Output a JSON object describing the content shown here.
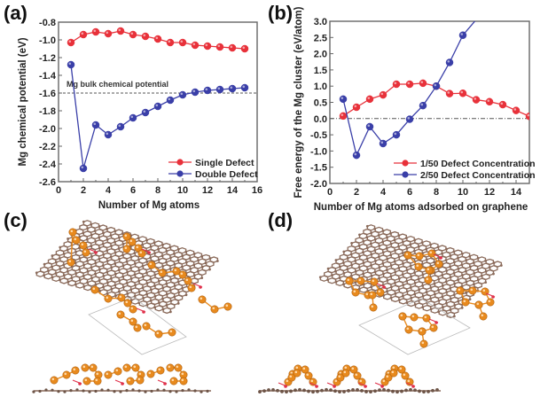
{
  "panels": {
    "a": "(a)",
    "b": "(b)",
    "c": "(c)",
    "d": "(d)"
  },
  "chart_data": [
    {
      "id": "a",
      "type": "line",
      "title": "",
      "xlabel": "Number of Mg atoms",
      "ylabel": "Mg chemical potential (eV)",
      "xlim": [
        0,
        16
      ],
      "ylim": [
        -2.6,
        -0.8
      ],
      "xticks": [
        0,
        2,
        4,
        6,
        8,
        10,
        12,
        14,
        16
      ],
      "yticks": [
        -0.8,
        -1.0,
        -1.2,
        -1.4,
        -1.6,
        -1.8,
        -2.0,
        -2.2,
        -2.4,
        -2.6
      ],
      "ytick_labels": [
        "-0.8",
        "-1.0",
        "-1.2",
        "-1.4",
        "-1.6",
        "-1.8",
        "-2.0",
        "-2.2",
        "-2.4",
        "-2.6"
      ],
      "grid": false,
      "legend": "bottom-right",
      "reference_line": {
        "y": -1.6,
        "label": "Mg bulk chemical potential",
        "style": "dashed"
      },
      "series": [
        {
          "name": "Single Defect",
          "color": "#e8313a",
          "x": [
            1,
            2,
            3,
            4,
            5,
            6,
            7,
            8,
            9,
            10,
            11,
            12,
            13,
            14,
            15
          ],
          "values": [
            -1.03,
            -0.94,
            -0.91,
            -0.93,
            -0.9,
            -0.94,
            -0.96,
            -0.99,
            -1.03,
            -1.03,
            -1.06,
            -1.07,
            -1.08,
            -1.09,
            -1.1
          ]
        },
        {
          "name": "Double Defect",
          "color": "#3a3fa8",
          "x": [
            1,
            2,
            3,
            4,
            5,
            6,
            7,
            8,
            9,
            10,
            11,
            12,
            13,
            14,
            15
          ],
          "values": [
            -1.28,
            -2.45,
            -1.96,
            -2.07,
            -1.98,
            -1.88,
            -1.82,
            -1.75,
            -1.68,
            -1.62,
            -1.59,
            -1.57,
            -1.56,
            -1.55,
            -1.54
          ]
        }
      ]
    },
    {
      "id": "b",
      "type": "line",
      "title": "",
      "xlabel": "Number of Mg atoms adsorbed on graphene",
      "ylabel": "Free energy of the Mg cluster (eV/atom)",
      "xlim": [
        0,
        15
      ],
      "ylim": [
        -2.0,
        3.0
      ],
      "xticks": [
        0,
        2,
        4,
        6,
        8,
        10,
        12,
        14
      ],
      "yticks": [
        3.0,
        2.5,
        2.0,
        1.5,
        1.0,
        0.5,
        0.0,
        -0.5,
        -1.0,
        -1.5,
        -2.0
      ],
      "ytick_labels": [
        "3.0",
        "2.5",
        "2.0",
        "1.5",
        "1.0",
        "0.5",
        "0.0",
        "-0.5",
        "-1.0",
        "-1.5",
        "-2.0"
      ],
      "grid": false,
      "legend": "bottom-right",
      "reference_line": {
        "y": 0.0,
        "label": "",
        "style": "dash-dot"
      },
      "series": [
        {
          "name": "1/50 Defect Concentration",
          "color": "#e8313a",
          "x": [
            1,
            2,
            3,
            4,
            5,
            6,
            7,
            8,
            9,
            10,
            11,
            12,
            13,
            14,
            15
          ],
          "values": [
            0.08,
            0.35,
            0.6,
            0.73,
            1.06,
            1.06,
            1.09,
            1.0,
            0.77,
            0.78,
            0.58,
            0.52,
            0.43,
            0.25,
            0.07
          ]
        },
        {
          "name": "2/50 Defect Concentration",
          "color": "#3a3fa8",
          "x": [
            1,
            2,
            3,
            4,
            5,
            6,
            7,
            8,
            9,
            10,
            11
          ],
          "values": [
            0.6,
            -1.13,
            -0.25,
            -0.77,
            -0.5,
            -0.02,
            0.4,
            1.0,
            1.73,
            2.57,
            3.05
          ]
        }
      ]
    }
  ],
  "structures": {
    "c": {
      "description": "Graphene sheet with Mg clusters at single defects (top and side view)"
    },
    "d": {
      "description": "Graphene sheet with Mg clusters at double defects (top and side view)"
    }
  }
}
